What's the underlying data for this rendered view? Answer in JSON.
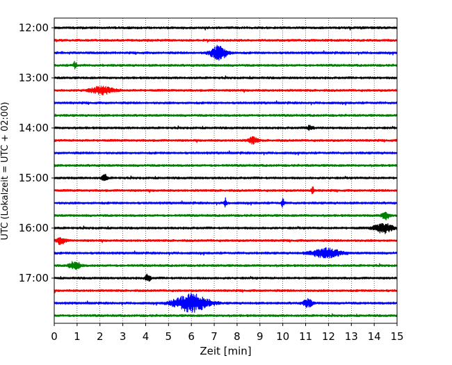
{
  "chart_data": {
    "type": "line",
    "subtype": "helicorder",
    "title": "",
    "xlabel": "Zeit  [min]",
    "ylabel": "UTC (Lokalzeit = UTC + 02:00)",
    "xlim": [
      0,
      15
    ],
    "x_ticks": [
      0,
      1,
      2,
      3,
      4,
      5,
      6,
      7,
      8,
      9,
      10,
      11,
      12,
      13,
      14,
      15
    ],
    "x_tick_labels": [
      "0",
      "1",
      "2",
      "3",
      "4",
      "5",
      "6",
      "7",
      "8",
      "9",
      "10",
      "11",
      "12",
      "13",
      "14",
      "15"
    ],
    "y_ticks": [
      {
        "label": "12:00",
        "row": 0
      },
      {
        "label": "13:00",
        "row": 4
      },
      {
        "label": "14:00",
        "row": 8
      },
      {
        "label": "15:00",
        "row": 12
      },
      {
        "label": "16:00",
        "row": 16
      },
      {
        "label": "17:00",
        "row": 20
      }
    ],
    "grid": {
      "vertical": true,
      "style": "dotted"
    },
    "color_cycle": [
      "#000000",
      "#ff0000",
      "#0000ff",
      "#008000"
    ],
    "series": [
      {
        "label": "12:00",
        "row": 0,
        "color": "#000000",
        "events": []
      },
      {
        "label": "12:15",
        "row": 1,
        "color": "#ff0000",
        "events": []
      },
      {
        "label": "12:30",
        "row": 2,
        "color": "#0000ff",
        "events": [
          {
            "t": 7.2,
            "amp": 10,
            "dur": 0.9
          }
        ]
      },
      {
        "label": "12:45",
        "row": 3,
        "color": "#008000",
        "events": [
          {
            "t": 0.9,
            "amp": 5,
            "dur": 0.2
          }
        ]
      },
      {
        "label": "13:00",
        "row": 4,
        "color": "#000000",
        "events": []
      },
      {
        "label": "13:15",
        "row": 5,
        "color": "#ff0000",
        "events": [
          {
            "t": 2.1,
            "amp": 5,
            "dur": 1.3
          }
        ]
      },
      {
        "label": "13:30",
        "row": 6,
        "color": "#0000ff",
        "events": []
      },
      {
        "label": "13:45",
        "row": 7,
        "color": "#008000",
        "events": []
      },
      {
        "label": "14:00",
        "row": 8,
        "color": "#000000",
        "events": [
          {
            "t": 11.2,
            "amp": 4,
            "dur": 0.3
          }
        ]
      },
      {
        "label": "14:15",
        "row": 9,
        "color": "#ff0000",
        "events": [
          {
            "t": 8.7,
            "amp": 5,
            "dur": 0.5
          }
        ]
      },
      {
        "label": "14:30",
        "row": 10,
        "color": "#0000ff",
        "events": []
      },
      {
        "label": "14:45",
        "row": 11,
        "color": "#008000",
        "events": []
      },
      {
        "label": "15:00",
        "row": 12,
        "color": "#000000",
        "events": [
          {
            "t": 2.2,
            "amp": 5,
            "dur": 0.3
          }
        ]
      },
      {
        "label": "15:15",
        "row": 13,
        "color": "#ff0000",
        "events": [
          {
            "t": 11.3,
            "amp": 5,
            "dur": 0.15
          }
        ]
      },
      {
        "label": "15:30",
        "row": 14,
        "color": "#0000ff",
        "events": [
          {
            "t": 7.5,
            "amp": 6,
            "dur": 0.15
          },
          {
            "t": 10.0,
            "amp": 6,
            "dur": 0.15
          }
        ]
      },
      {
        "label": "15:45",
        "row": 15,
        "color": "#008000",
        "events": [
          {
            "t": 14.5,
            "amp": 6,
            "dur": 0.4
          }
        ]
      },
      {
        "label": "16:00",
        "row": 16,
        "color": "#000000",
        "events": [
          {
            "t": 14.4,
            "amp": 7,
            "dur": 1.0
          }
        ]
      },
      {
        "label": "16:15",
        "row": 17,
        "color": "#ff0000",
        "events": [
          {
            "t": 0.3,
            "amp": 5,
            "dur": 0.5
          }
        ]
      },
      {
        "label": "16:30",
        "row": 18,
        "color": "#0000ff",
        "events": [
          {
            "t": 11.9,
            "amp": 7,
            "dur": 1.5
          }
        ]
      },
      {
        "label": "16:45",
        "row": 19,
        "color": "#008000",
        "events": [
          {
            "t": 0.9,
            "amp": 6,
            "dur": 0.6
          }
        ]
      },
      {
        "label": "17:00",
        "row": 20,
        "color": "#000000",
        "events": [
          {
            "t": 4.1,
            "amp": 5,
            "dur": 0.3
          }
        ]
      },
      {
        "label": "17:15",
        "row": 21,
        "color": "#ff0000",
        "events": []
      },
      {
        "label": "17:30",
        "row": 22,
        "color": "#0000ff",
        "events": [
          {
            "t": 6.0,
            "amp": 13,
            "dur": 1.8
          },
          {
            "t": 11.1,
            "amp": 6,
            "dur": 0.5
          }
        ]
      },
      {
        "label": "17:45",
        "row": 23,
        "color": "#008000",
        "events": []
      }
    ]
  }
}
